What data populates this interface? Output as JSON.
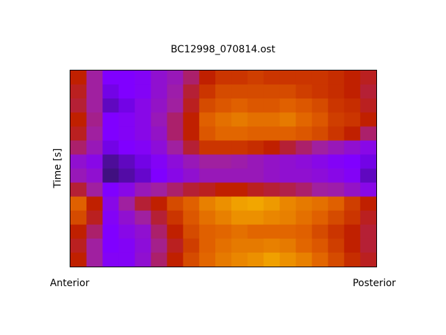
{
  "chart_data": {
    "type": "heatmap",
    "title": "BC12998_070814.ost",
    "ylabel": "Time [s]",
    "x_start_label": "Anterior",
    "x_end_label": "Posterior",
    "zlim": [
      0,
      1
    ],
    "colormap": {
      "stops": [
        0,
        0.1,
        0.3,
        0.45,
        0.6,
        0.8,
        1
      ],
      "colors": [
        "#401080",
        "#8000ff",
        "#a020a0",
        "#c02000",
        "#e06000",
        "#f0a000",
        "#ffe000"
      ]
    },
    "z": [
      [
        0.45,
        0.3,
        0.1,
        0.1,
        0.12,
        0.2,
        0.25,
        0.35,
        0.45,
        0.5,
        0.5,
        0.52,
        0.5,
        0.5,
        0.5,
        0.5,
        0.48,
        0.45,
        0.42
      ],
      [
        0.42,
        0.3,
        0.08,
        0.1,
        0.12,
        0.2,
        0.28,
        0.4,
        0.5,
        0.55,
        0.55,
        0.55,
        0.55,
        0.55,
        0.52,
        0.5,
        0.48,
        0.45,
        0.4
      ],
      [
        0.4,
        0.3,
        0.05,
        0.08,
        0.15,
        0.22,
        0.3,
        0.42,
        0.55,
        0.58,
        0.6,
        0.58,
        0.58,
        0.6,
        0.58,
        0.55,
        0.5,
        0.48,
        0.42
      ],
      [
        0.45,
        0.32,
        0.1,
        0.12,
        0.15,
        0.25,
        0.35,
        0.45,
        0.6,
        0.65,
        0.68,
        0.65,
        0.65,
        0.68,
        0.62,
        0.58,
        0.52,
        0.5,
        0.45
      ],
      [
        0.42,
        0.3,
        0.1,
        0.12,
        0.15,
        0.22,
        0.35,
        0.45,
        0.58,
        0.62,
        0.62,
        0.6,
        0.6,
        0.6,
        0.58,
        0.55,
        0.5,
        0.45,
        0.35
      ],
      [
        0.35,
        0.25,
        0.08,
        0.1,
        0.12,
        0.18,
        0.3,
        0.4,
        0.5,
        0.5,
        0.5,
        0.48,
        0.45,
        0.4,
        0.35,
        0.3,
        0.25,
        0.2,
        0.15
      ],
      [
        0.2,
        0.15,
        0.02,
        0.05,
        0.08,
        0.12,
        0.18,
        0.25,
        0.3,
        0.3,
        0.28,
        0.25,
        0.22,
        0.2,
        0.18,
        0.15,
        0.12,
        0.1,
        0.08
      ],
      [
        0.25,
        0.2,
        0,
        0.03,
        0.06,
        0.1,
        0.15,
        0.2,
        0.25,
        0.25,
        0.25,
        0.25,
        0.22,
        0.2,
        0.2,
        0.18,
        0.15,
        0.12,
        0.05
      ],
      [
        0.4,
        0.3,
        0.1,
        0.15,
        0.25,
        0.3,
        0.35,
        0.4,
        0.42,
        0.45,
        0.45,
        0.42,
        0.4,
        0.38,
        0.35,
        0.3,
        0.28,
        0.22,
        0.15
      ],
      [
        0.6,
        0.45,
        0.15,
        0.3,
        0.4,
        0.45,
        0.55,
        0.6,
        0.7,
        0.75,
        0.8,
        0.82,
        0.78,
        0.72,
        0.68,
        0.65,
        0.6,
        0.52,
        0.45
      ],
      [
        0.55,
        0.42,
        0.12,
        0.2,
        0.3,
        0.4,
        0.5,
        0.58,
        0.65,
        0.7,
        0.75,
        0.75,
        0.72,
        0.7,
        0.65,
        0.6,
        0.55,
        0.5,
        0.42
      ],
      [
        0.45,
        0.35,
        0.1,
        0.15,
        0.2,
        0.35,
        0.45,
        0.55,
        0.6,
        0.62,
        0.65,
        0.62,
        0.62,
        0.62,
        0.6,
        0.55,
        0.5,
        0.45,
        0.4
      ],
      [
        0.42,
        0.3,
        0.1,
        0.12,
        0.18,
        0.32,
        0.42,
        0.52,
        0.6,
        0.65,
        0.68,
        0.68,
        0.7,
        0.68,
        0.62,
        0.58,
        0.52,
        0.45,
        0.4
      ],
      [
        0.45,
        0.3,
        0.12,
        0.12,
        0.2,
        0.35,
        0.45,
        0.55,
        0.62,
        0.68,
        0.72,
        0.75,
        0.8,
        0.75,
        0.7,
        0.62,
        0.55,
        0.48,
        0.42
      ]
    ]
  }
}
